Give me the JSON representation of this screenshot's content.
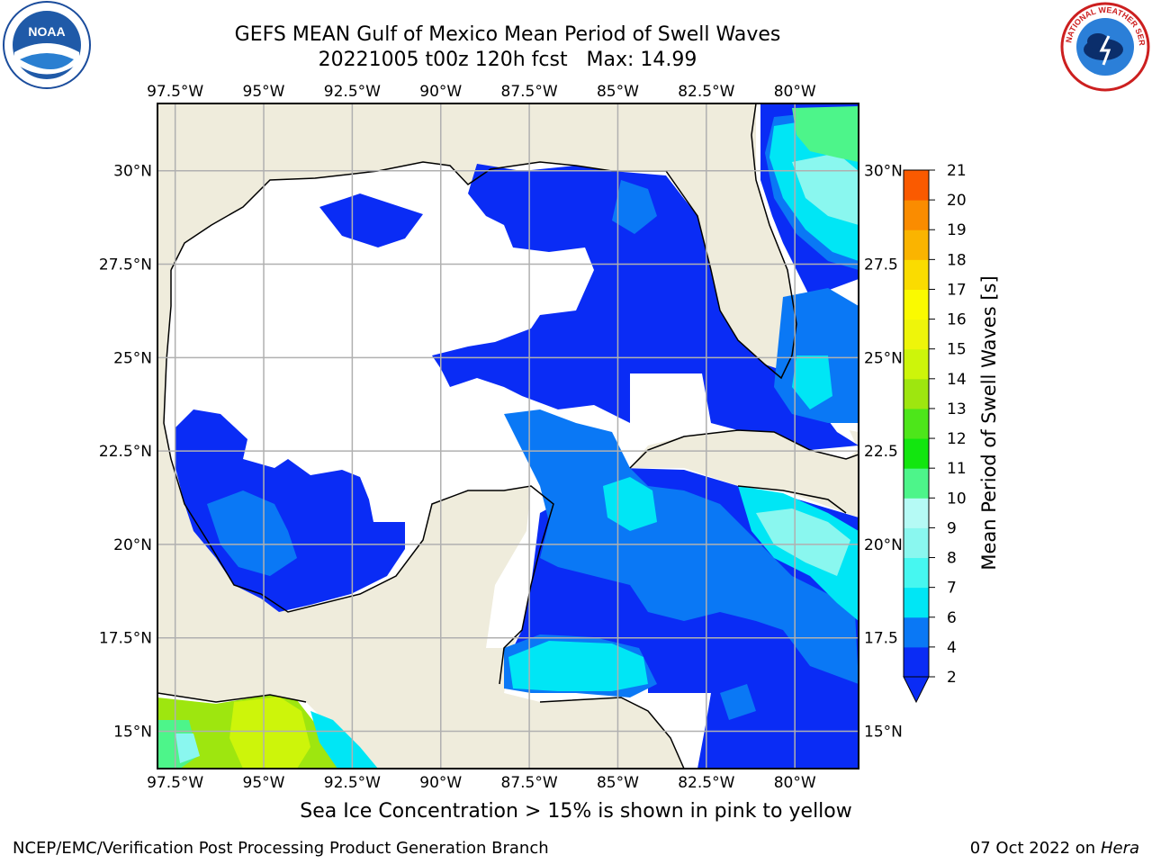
{
  "title": {
    "line1": "GEFS MEAN Gulf of Mexico Mean Period of Swell Waves",
    "line2": "20221005 t00z 120h fcst   Max: 14.99"
  },
  "logos": {
    "left": {
      "name": "noaa-logo",
      "text": "NOAA"
    },
    "right": {
      "name": "national-weather-service-logo",
      "text": "NATIONAL WEATHER SERVICE"
    }
  },
  "map": {
    "lon_range": [
      -98.0,
      -78.2
    ],
    "lat_range": [
      14.0,
      31.8
    ],
    "lon_ticks": [
      "97.5°W",
      "95°W",
      "92.5°W",
      "90°W",
      "87.5°W",
      "85°W",
      "82.5°W",
      "80°W"
    ],
    "lon_tick_values": [
      -97.5,
      -95,
      -92.5,
      -90,
      -87.5,
      -85,
      -82.5,
      -80
    ],
    "lat_ticks_left": [
      "30°N",
      "27.5°N",
      "25°N",
      "22.5°N",
      "20°N",
      "17.5°N",
      "15°N"
    ],
    "lat_ticks_right": [
      "30°N",
      "27.5",
      "25°N",
      "22.5",
      "20°N",
      "17.5",
      "15°N"
    ],
    "lat_tick_values": [
      30,
      27.5,
      25,
      22.5,
      20,
      17.5,
      15
    ],
    "land_color": "#efecdc",
    "ocean_missing_color": "#ffffff",
    "grid_color": "#b0b0b0"
  },
  "colorbar": {
    "label": "Mean Period of Swell Waves [s]",
    "tick_labels": [
      "2",
      "4",
      "6",
      "7",
      "8",
      "9",
      "10",
      "11",
      "12",
      "13",
      "14",
      "15",
      "16",
      "17",
      "18",
      "19",
      "20",
      "21"
    ],
    "colors": [
      "#0a2cf5",
      "#0a78f5",
      "#00e6f5",
      "#46f7f0",
      "#8af7ef",
      "#b5faf5",
      "#4df58a",
      "#12e60f",
      "#4de61a",
      "#9ee60f",
      "#cdf50a",
      "#eef50a",
      "#fafa00",
      "#fadc00",
      "#fab400",
      "#fa8c00",
      "#fa5a00",
      "#fa2800",
      "#f50a0a"
    ],
    "extend": "min"
  },
  "note": "Sea Ice Concentration > 15% is shown in pink to yellow",
  "footer": {
    "left": "NCEP/EMC/Verification Post Processing Product Generation Branch",
    "right_date": "07 Oct 2022 on",
    "right_host": "Hera"
  }
}
